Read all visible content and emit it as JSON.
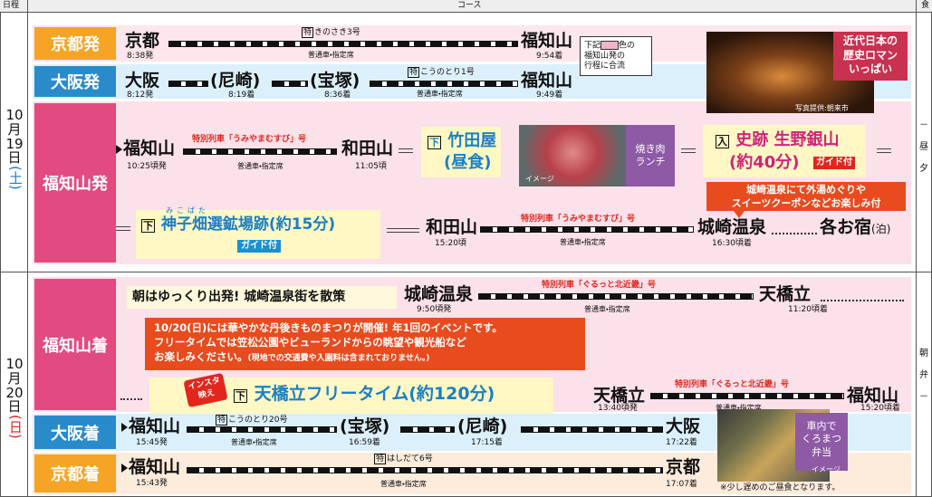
{
  "header": {
    "schedule": "日程",
    "course": "コース",
    "meal": "食"
  },
  "day1": {
    "month": "10",
    "month_unit": "月",
    "day": "19",
    "day_unit": "日",
    "weekday": "(土)",
    "meals": [
      "－",
      "昼",
      "夕"
    ],
    "kyoto": {
      "label": "京都発",
      "from": "京都",
      "from_time": "8:38発",
      "train_mark": "特",
      "train": "きのさき3号",
      "seat": "普通車・指定席",
      "to": "福知山",
      "to_time": "9:54着",
      "note": [
        "下記",
        "色の",
        "福知山発の",
        "行程に合流"
      ]
    },
    "osaka": {
      "label": "大阪発",
      "stops": [
        {
          "name": "大阪",
          "time": "8:12発"
        },
        {
          "name": "(尼崎)",
          "time": "8:19着"
        },
        {
          "name": "(宝塚)",
          "time": "8:36着"
        },
        {
          "name": "福知山",
          "time": "9:49着"
        }
      ],
      "train_mark": "特",
      "train": "こうのとり1号",
      "seat": "普通車・指定席"
    },
    "photo": {
      "caption": [
        "近代日本の",
        "歴史ロマン",
        "いっぱい"
      ],
      "credit": "写真提供:朝来市"
    },
    "fukuchiyama": {
      "label": "福知山発",
      "leg1": {
        "from": "福知山",
        "from_time": "10:25頃発",
        "train": "特別列車「うみやまむすび」号",
        "seat": "普通車・指定席",
        "to": "和田山",
        "to_time": "11:05頃"
      },
      "lunch": {
        "mark": "下",
        "name": "竹田屋",
        "note": "(昼食)",
        "photo_label": "イメージ",
        "menu": [
          "焼き肉",
          "ランチ"
        ]
      },
      "ikuno": {
        "mark": "入",
        "name": "史跡 生野銀山",
        "duration": "(約40分)",
        "guide": "ガイド付"
      },
      "kinosaki_note": [
        "城崎温泉にて外湯めぐりや",
        "スイーツクーポンなどお楽しみ付"
      ],
      "mikobata": {
        "mark": "下",
        "ruby": "みこばた",
        "name": "神子畑選鉱場跡(約15分)",
        "guide": "ガイド付"
      },
      "leg2": {
        "from": "和田山",
        "from_time": "15:20頃",
        "train": "特別列車「うみやまむすび」号",
        "seat": "普通車・指定席",
        "to": "城崎温泉",
        "to_time": "16:30頃着"
      },
      "stay": {
        "name": "各お宿",
        "note": "(泊)"
      }
    }
  },
  "day2": {
    "month": "10",
    "month_unit": "月",
    "day": "20",
    "day_unit": "日",
    "weekday": "(日)",
    "meals": [
      "朝",
      "弁",
      "－"
    ],
    "fukuchiyama": {
      "label": "福知山着",
      "morning": "朝はゆっくり出発! 城崎温泉街を散策",
      "leg1": {
        "from": "城崎温泉",
        "from_time": "9:50頃発",
        "train": "特別列車「ぐるっと北近畿」号",
        "seat": "普通車・指定席",
        "to": "天橋立",
        "to_time": "11:20頃着"
      },
      "festival": [
        "10/20(日)には華やかな丹後きものまつりが開催! 年1回のイベントです。",
        "フリータイムでは笠松公園やビューランドからの眺望や観光船など",
        "お楽しみください。",
        "(現地での交通費や入園料は含まれておりません。)"
      ],
      "insta": [
        "インスタ",
        "映え"
      ],
      "free": {
        "mark": "下",
        "name": "天橋立フリータイム(約120分)"
      },
      "leg2": {
        "from": "天橋立",
        "from_time": "13:40頃発",
        "train": "特別列車「ぐるっと北近畿」号",
        "seat": "普通車・指定席",
        "to": "福知山",
        "to_time": "15:20頃着"
      }
    },
    "osaka": {
      "label": "大阪着",
      "stops": [
        {
          "name": "福知山",
          "time": "15:45発"
        },
        {
          "name": "(宝塚)",
          "time": "16:59着"
        },
        {
          "name": "(尼崎)",
          "time": "17:15着"
        },
        {
          "name": "大阪",
          "time": "17:22着"
        }
      ],
      "train_mark": "特",
      "train": "こうのとり20号",
      "seat": "普通車・指定席"
    },
    "kyoto": {
      "label": "京都着",
      "from": "福知山",
      "from_time": "15:43発",
      "train_mark": "特",
      "train": "はしだて6号",
      "seat": "普通車・指定席",
      "to": "京都",
      "to_time": "17:07着"
    },
    "bento": {
      "caption": [
        "車内で",
        "くろまつ",
        "弁当"
      ],
      "photo_label": "イメージ",
      "note": "※少し遅めのご昼食となります。"
    }
  }
}
